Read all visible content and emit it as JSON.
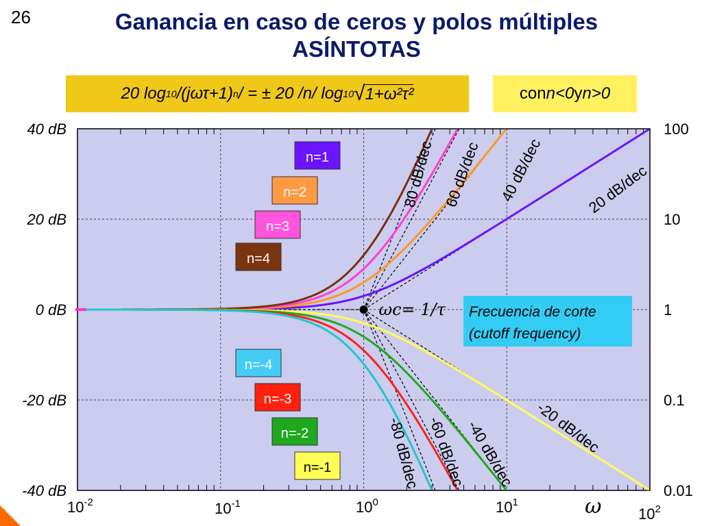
{
  "slide_number": "26",
  "title_line1": "Ganancia en caso de ceros y polos múltiples",
  "title_line2": "ASÍNTOTAS",
  "formula": {
    "pre": "20 log",
    "sub1": "10",
    "mid": " /(jωτ+1)",
    "sup1": "n",
    "post": "/ = ± 20 /n/ log",
    "sub2": "10",
    "root": "1+ω²τ²"
  },
  "condition": {
    "pre": "con ",
    "a": "n<0",
    "mid": " y ",
    "b": "n>0"
  },
  "omega_symbol": "ω",
  "chart_data": {
    "type": "line",
    "x_scale": "log",
    "xlim": [
      0.01,
      100
    ],
    "ylim": [
      -40,
      40
    ],
    "x_ticks": [
      {
        "base": "10",
        "exp": "-2"
      },
      {
        "base": "10",
        "exp": "-1"
      },
      {
        "base": "10",
        "exp": "0"
      },
      {
        "base": "10",
        "exp": "1"
      },
      {
        "base": "10",
        "exp": "2"
      }
    ],
    "y_ticks_left": [
      "40 dB",
      "20 dB",
      "0 dB",
      "-20 dB",
      "-40 dB"
    ],
    "y_ticks_right": [
      "100",
      "10",
      "1",
      "0.1",
      "0.01"
    ],
    "grid": true,
    "plot_background": "#ccccee",
    "cutoff_label": "ωc= 1/τ",
    "cutoff_box": {
      "line1": "Frecuencia de corte",
      "line2": "(cutoff frequency)",
      "color": "#33ccf5"
    },
    "series": [
      {
        "name": "n=1",
        "n": 1,
        "color": "#6a14ff"
      },
      {
        "name": "n=2",
        "n": 2,
        "color": "#ff9922"
      },
      {
        "name": "n=3",
        "n": 3,
        "color": "#ff3fcf"
      },
      {
        "name": "n=4",
        "n": 4,
        "color": "#7a2f10"
      },
      {
        "name": "n=-1",
        "n": -1,
        "color": "#ffff55"
      },
      {
        "name": "n=-2",
        "n": -2,
        "color": "#1fa81f"
      },
      {
        "name": "n=-3",
        "n": -3,
        "color": "#ff2020"
      },
      {
        "name": "n=-4",
        "n": -4,
        "color": "#1fc8c8"
      }
    ],
    "legend": [
      {
        "label": "n=1",
        "bg": "#6a14ff",
        "fg": "#ffffff"
      },
      {
        "label": "n=2",
        "bg": "#ff9944",
        "fg": "#ffffff"
      },
      {
        "label": "n=3",
        "bg": "#ff55dd",
        "fg": "#ffffff"
      },
      {
        "label": "n=4",
        "bg": "#7a3510",
        "fg": "#ffffff"
      },
      {
        "label": "n=-4",
        "bg": "#44ccf5",
        "fg": "#ffffff"
      },
      {
        "label": "n=-3",
        "bg": "#ff2010",
        "fg": "#ffffff"
      },
      {
        "label": "n=-2",
        "bg": "#1fa81f",
        "fg": "#ffffff"
      },
      {
        "label": "n=-1",
        "bg": "#ffff55",
        "fg": "#000000"
      }
    ],
    "slope_labels": [
      {
        "text": "80 dB/dec",
        "n": 4
      },
      {
        "text": "60 dB/dec",
        "n": 3
      },
      {
        "text": "40 dB/dec",
        "n": 2
      },
      {
        "text": "20 dB/dec",
        "n": 1
      },
      {
        "text": "-80 dB/dec",
        "n": -4
      },
      {
        "text": "-60 dB/dec",
        "n": -3
      },
      {
        "text": "-40 dB/dec",
        "n": -2
      },
      {
        "text": "-20 dB/dec",
        "n": -1
      }
    ]
  }
}
